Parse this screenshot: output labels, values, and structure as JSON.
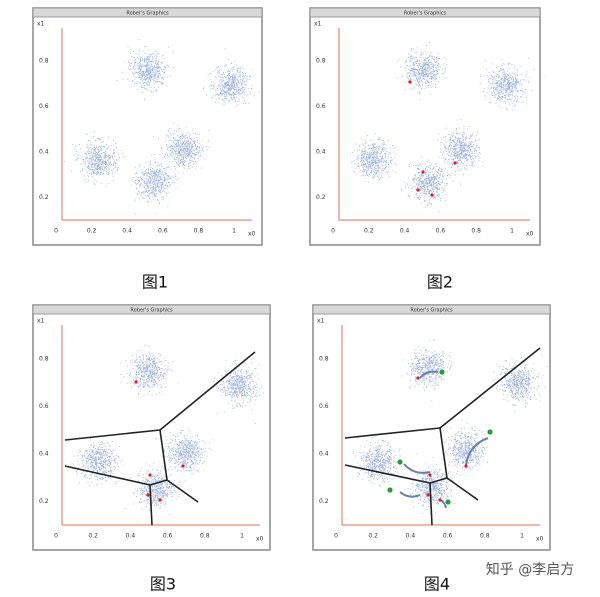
{
  "window_title": "Rober's Graphics",
  "y_axis_label": "x1",
  "x_axis_label": "x0",
  "y_tick_labels": [
    "0.2",
    "0.4",
    "0.6",
    "0.8"
  ],
  "x_tick_labels": [
    "0",
    "0.2",
    "0.4",
    "0.6",
    "0.8",
    "1"
  ],
  "captions": [
    "图1",
    "图2",
    "图3",
    "图4"
  ],
  "watermark": "知乎 @李启方"
}
